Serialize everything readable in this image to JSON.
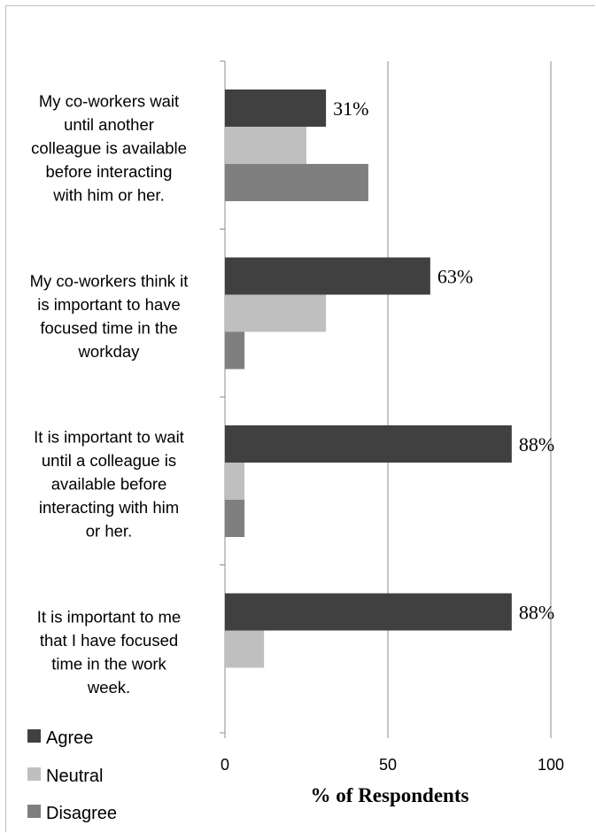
{
  "chart_data": {
    "type": "bar",
    "orientation": "horizontal",
    "categories": [
      "My co-workers wait until another colleague is available before interacting with him or her.",
      "My co-workers think it is important to have focused time in the workday",
      "It is important to wait until a colleague is available before interacting with him or her.",
      "It is important to me that I have focused time in the work week."
    ],
    "category_lines": [
      [
        "My co-workers wait",
        "until another",
        "colleague is available",
        "before interacting",
        "with him or her."
      ],
      [
        "My co-workers think it",
        "is important to have",
        "focused time in the",
        "workday"
      ],
      [
        "It is important to wait",
        "until a colleague is",
        "available before",
        "interacting with him",
        "or her."
      ],
      [
        "It is important to me",
        "that I have focused",
        "time in the work",
        "week."
      ]
    ],
    "series": [
      {
        "name": "Agree",
        "values": [
          31,
          63,
          88,
          88
        ],
        "color": "#404040"
      },
      {
        "name": "Neutral",
        "values": [
          25,
          31,
          6,
          12
        ],
        "color": "#bfbfbf"
      },
      {
        "name": "Disagree",
        "values": [
          44,
          6,
          6,
          0
        ],
        "color": "#7f7f7f"
      }
    ],
    "data_labels": [
      "31%",
      "63%",
      "88%",
      "88%"
    ],
    "xlabel": "% of Respondents",
    "xlim": [
      0,
      100
    ],
    "xticks": [
      0,
      50,
      100
    ],
    "grid": true,
    "legend_position": "bottom-left"
  }
}
